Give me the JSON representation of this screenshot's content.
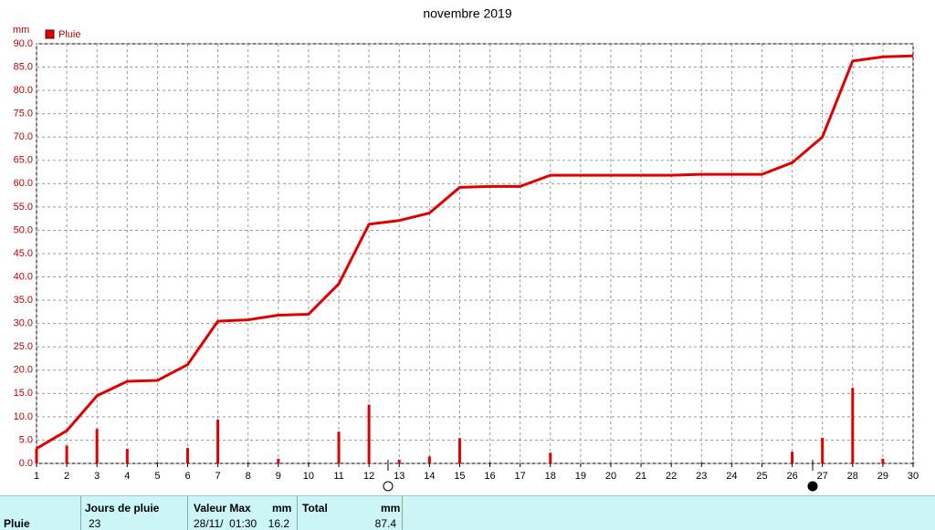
{
  "chart_data": {
    "type": "combo",
    "title": "novembre 2019",
    "y_label": "mm",
    "x": [
      1,
      2,
      3,
      4,
      5,
      6,
      7,
      8,
      9,
      10,
      11,
      12,
      13,
      14,
      15,
      16,
      17,
      18,
      19,
      20,
      21,
      22,
      23,
      24,
      25,
      26,
      27,
      28,
      29,
      30
    ],
    "xlim": [
      1,
      30
    ],
    "xticks": [
      1,
      2,
      3,
      4,
      5,
      6,
      7,
      8,
      9,
      10,
      11,
      12,
      13,
      14,
      15,
      16,
      17,
      18,
      19,
      20,
      21,
      22,
      23,
      24,
      25,
      26,
      27,
      28,
      29,
      30
    ],
    "ylim": [
      0,
      90
    ],
    "yticks": [
      {
        "value": 0,
        "label": "0.0"
      },
      {
        "value": 5,
        "label": "5.0"
      },
      {
        "value": 10,
        "label": "10.0"
      },
      {
        "value": 15,
        "label": "15.0"
      },
      {
        "value": 20,
        "label": "20.0"
      },
      {
        "value": 25,
        "label": "25.0"
      },
      {
        "value": 30,
        "label": "30.0"
      },
      {
        "value": 35,
        "label": "35.0"
      },
      {
        "value": 40,
        "label": "40.0"
      },
      {
        "value": 45,
        "label": "45.0"
      },
      {
        "value": 50,
        "label": "50.0"
      },
      {
        "value": 55,
        "label": "55.0"
      },
      {
        "value": 60,
        "label": "60.0"
      },
      {
        "value": 65,
        "label": "65.0"
      },
      {
        "value": 70,
        "label": "70.0"
      },
      {
        "value": 75,
        "label": "75.0"
      },
      {
        "value": 80,
        "label": "80.0"
      },
      {
        "value": 85,
        "label": "85.0"
      },
      {
        "value": 90,
        "label": "90.0"
      }
    ],
    "grid": true,
    "legend": "top-left",
    "series": [
      {
        "name": "Pluie",
        "type": "bar",
        "color": "#e00000",
        "values": [
          3.2,
          3.8,
          7.4,
          3.1,
          0.2,
          3.3,
          9.4,
          0.2,
          1.0,
          0.2,
          6.8,
          12.6,
          0.8,
          1.5,
          5.4,
          0.2,
          0,
          2.3,
          0,
          0,
          0,
          0,
          0.2,
          0,
          0,
          2.5,
          5.5,
          16.2,
          1.0,
          0.2
        ]
      },
      {
        "type": "line",
        "color": "#e00000",
        "values": [
          3.2,
          7.0,
          14.5,
          17.6,
          17.8,
          21.2,
          30.5,
          30.8,
          31.8,
          32.0,
          38.5,
          51.3,
          52.1,
          53.7,
          59.2,
          59.4,
          59.4,
          61.8,
          61.8,
          61.8,
          61.8,
          61.8,
          62.0,
          62.0,
          62.0,
          64.5,
          70.0,
          86.3,
          87.2,
          87.4
        ]
      }
    ]
  },
  "table": {
    "header": [
      "Jours de pluie",
      "Valeur Max",
      "mm",
      "Total",
      "mm"
    ],
    "rows": [
      [
        "Pluie",
        "23",
        "28/11/  01:30",
        "16.2",
        "87.4"
      ]
    ]
  }
}
